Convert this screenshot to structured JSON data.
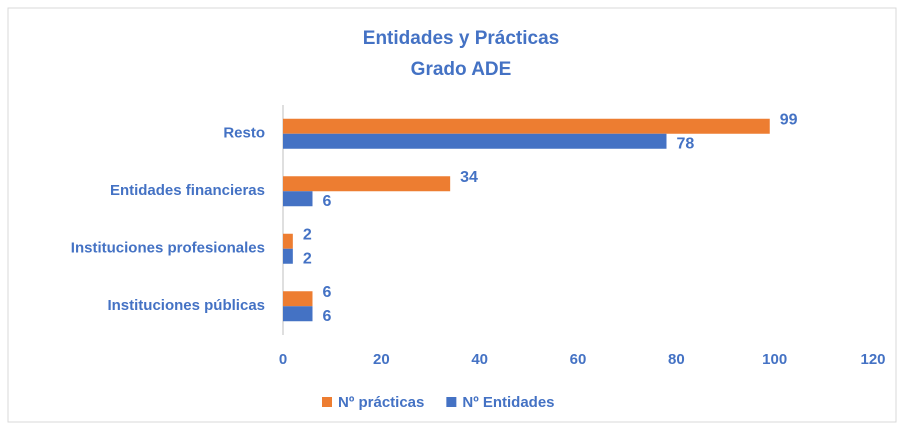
{
  "chart_data": {
    "type": "bar",
    "orientation": "horizontal",
    "title": "Entidades y Prácticas",
    "subtitle": "Grado ADE",
    "categories": [
      "Resto",
      "Entidades financieras",
      "Instituciones profesionales",
      "Instituciones públicas"
    ],
    "series": [
      {
        "name": "Nº prácticas",
        "color": "#ed7d31",
        "values": [
          99,
          34,
          2,
          6
        ]
      },
      {
        "name": "Nº Entidades",
        "color": "#4472c4",
        "values": [
          78,
          6,
          2,
          6
        ]
      }
    ],
    "xlim": [
      0,
      120
    ],
    "xticks": [
      0,
      20,
      40,
      60,
      80,
      100,
      120
    ],
    "grid": false,
    "legend": "bottom"
  }
}
